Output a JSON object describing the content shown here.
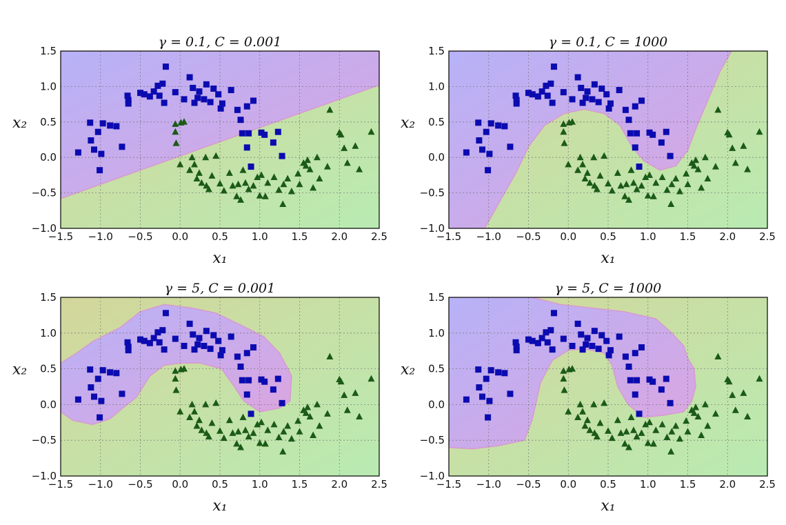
{
  "chart_data": [
    {
      "type": "scatter",
      "title": "γ = 0.1, C = 0.001",
      "boundary": "linear",
      "xlabel": "x₁",
      "ylabel": "x₂",
      "xlim": [
        -1.5,
        2.5
      ],
      "ylim": [
        -1.0,
        1.5
      ],
      "xticks": [
        "−1.5",
        "−1.0",
        "−0.5",
        "0.0",
        "0.5",
        "1.0",
        "1.5",
        "2.0",
        "2.5"
      ],
      "yticks": [
        "−1.0",
        "−0.5",
        "0.0",
        "0.5",
        "1.0",
        "1.5"
      ],
      "grid": true
    },
    {
      "type": "scatter",
      "title": "γ = 0.1, C = 1000",
      "boundary": "smooth-curve",
      "xlabel": "x₁",
      "ylabel": "x₂",
      "xlim": [
        -1.5,
        2.5
      ],
      "ylim": [
        -1.0,
        1.5
      ],
      "xticks": [
        "−1.5",
        "−1.0",
        "−0.5",
        "0.0",
        "0.5",
        "1.0",
        "1.5",
        "2.0",
        "2.5"
      ],
      "yticks": [
        "−1.0",
        "−0.5",
        "0.0",
        "0.5",
        "1.0",
        "1.5"
      ],
      "grid": true
    },
    {
      "type": "scatter",
      "title": "γ = 5, C = 0.001",
      "boundary": "tight-blob",
      "xlabel": "x₁",
      "ylabel": "x₂",
      "xlim": [
        -1.5,
        2.5
      ],
      "ylim": [
        -1.0,
        1.5
      ],
      "xticks": [
        "−1.5",
        "−1.0",
        "−0.5",
        "0.0",
        "0.5",
        "1.0",
        "1.5",
        "2.0",
        "2.5"
      ],
      "yticks": [
        "−1.0",
        "−0.5",
        "0.0",
        "0.5",
        "1.0",
        "1.5"
      ],
      "grid": true
    },
    {
      "type": "scatter",
      "title": "γ = 5, C = 1000",
      "boundary": "wiggly",
      "xlabel": "x₁",
      "ylabel": "x₂",
      "xlim": [
        -1.5,
        2.5
      ],
      "ylim": [
        -1.0,
        1.5
      ],
      "xticks": [
        "−1.5",
        "−1.0",
        "−0.5",
        "0.0",
        "0.5",
        "1.0",
        "1.5",
        "2.0",
        "2.5"
      ],
      "yticks": [
        "−1.0",
        "−0.5",
        "0.0",
        "0.5",
        "1.0",
        "1.5"
      ],
      "grid": true
    }
  ],
  "points": {
    "squares": [
      [
        -1.28,
        0.07
      ],
      [
        -1.13,
        0.49
      ],
      [
        -1.12,
        0.24
      ],
      [
        -1.08,
        0.11
      ],
      [
        -1.03,
        0.36
      ],
      [
        -0.97,
        0.48
      ],
      [
        -0.99,
        0.05
      ],
      [
        -1.01,
        -0.18
      ],
      [
        -0.88,
        0.45
      ],
      [
        -0.8,
        0.44
      ],
      [
        -0.73,
        0.15
      ],
      [
        -0.66,
        0.87
      ],
      [
        -0.65,
        0.81
      ],
      [
        -0.65,
        0.76
      ],
      [
        -0.5,
        0.91
      ],
      [
        -0.45,
        0.89
      ],
      [
        -0.38,
        0.86
      ],
      [
        -0.33,
        0.93
      ],
      [
        -0.28,
        1.01
      ],
      [
        -0.26,
        0.87
      ],
      [
        -0.22,
        1.04
      ],
      [
        -0.2,
        0.77
      ],
      [
        -0.18,
        1.28
      ],
      [
        -0.06,
        0.92
      ],
      [
        0.05,
        0.82
      ],
      [
        0.12,
        1.13
      ],
      [
        0.16,
        0.98
      ],
      [
        0.18,
        0.77
      ],
      [
        0.22,
        0.84
      ],
      [
        0.24,
        0.93
      ],
      [
        0.3,
        0.82
      ],
      [
        0.33,
        1.03
      ],
      [
        0.38,
        0.78
      ],
      [
        0.42,
        0.97
      ],
      [
        0.48,
        0.89
      ],
      [
        0.51,
        0.69
      ],
      [
        0.53,
        0.76
      ],
      [
        0.64,
        0.95
      ],
      [
        0.72,
        0.67
      ],
      [
        0.76,
        0.53
      ],
      [
        0.78,
        0.34
      ],
      [
        0.84,
        0.72
      ],
      [
        0.86,
        0.34
      ],
      [
        0.84,
        0.14
      ],
      [
        0.89,
        -0.13
      ],
      [
        0.92,
        0.8
      ],
      [
        1.02,
        0.35
      ],
      [
        1.06,
        0.32
      ],
      [
        1.17,
        0.21
      ],
      [
        1.23,
        0.36
      ],
      [
        1.28,
        0.02
      ]
    ],
    "triangles": [
      [
        -0.06,
        0.47
      ],
      [
        -0.06,
        0.36
      ],
      [
        -0.05,
        0.2
      ],
      [
        0.0,
        -0.1
      ],
      [
        0.01,
        0.49
      ],
      [
        0.05,
        0.5
      ],
      [
        0.12,
        -0.18
      ],
      [
        0.15,
        0.0
      ],
      [
        0.18,
        -0.1
      ],
      [
        0.21,
        -0.3
      ],
      [
        0.24,
        -0.22
      ],
      [
        0.27,
        -0.36
      ],
      [
        0.32,
        0.0
      ],
      [
        0.33,
        -0.4
      ],
      [
        0.36,
        -0.45
      ],
      [
        0.4,
        -0.26
      ],
      [
        0.45,
        0.02
      ],
      [
        0.5,
        -0.37
      ],
      [
        0.55,
        -0.47
      ],
      [
        0.62,
        -0.22
      ],
      [
        0.66,
        -0.4
      ],
      [
        0.71,
        -0.55
      ],
      [
        0.73,
        -0.38
      ],
      [
        0.76,
        -0.6
      ],
      [
        0.79,
        -0.18
      ],
      [
        0.82,
        -0.36
      ],
      [
        0.86,
        -0.45
      ],
      [
        0.92,
        -0.4
      ],
      [
        0.97,
        -0.28
      ],
      [
        1.0,
        -0.54
      ],
      [
        1.02,
        -0.25
      ],
      [
        1.07,
        -0.55
      ],
      [
        1.1,
        -0.36
      ],
      [
        1.18,
        -0.28
      ],
      [
        1.24,
        -0.46
      ],
      [
        1.29,
        -0.66
      ],
      [
        1.3,
        -0.38
      ],
      [
        1.35,
        -0.3
      ],
      [
        1.4,
        -0.48
      ],
      [
        1.48,
        -0.23
      ],
      [
        1.5,
        -0.38
      ],
      [
        1.55,
        -0.08
      ],
      [
        1.58,
        -0.12
      ],
      [
        1.6,
        -0.04
      ],
      [
        1.63,
        -0.17
      ],
      [
        1.67,
        -0.43
      ],
      [
        1.72,
        0.0
      ],
      [
        1.75,
        -0.3
      ],
      [
        1.85,
        -0.13
      ],
      [
        1.88,
        0.67
      ],
      [
        2.0,
        0.35
      ],
      [
        2.02,
        0.32
      ],
      [
        2.06,
        0.13
      ],
      [
        2.1,
        -0.08
      ],
      [
        2.2,
        0.16
      ],
      [
        2.25,
        -0.17
      ],
      [
        2.4,
        0.36
      ]
    ]
  }
}
